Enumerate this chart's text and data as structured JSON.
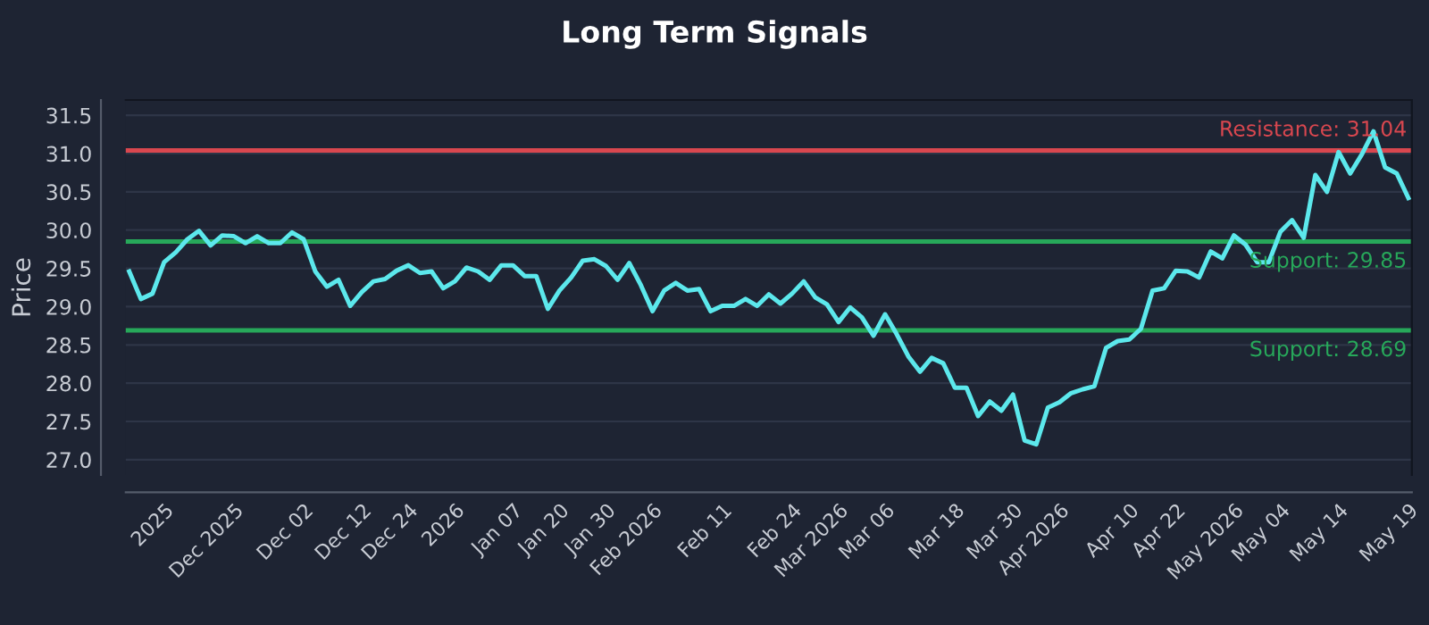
{
  "chart_data": {
    "type": "line",
    "title": "Long Term Signals",
    "ylabel": "Price",
    "categories": [
      null,
      null,
      null,
      "2025",
      null,
      null,
      null,
      null,
      null,
      "Dec 2025",
      null,
      null,
      null,
      null,
      null,
      "Dec 02",
      null,
      null,
      null,
      null,
      "Dec 12",
      null,
      null,
      null,
      "Dec 24",
      null,
      null,
      null,
      "2026",
      null,
      null,
      null,
      null,
      "Jan 07",
      null,
      null,
      null,
      "Jan 20",
      null,
      null,
      null,
      "Jan 30",
      null,
      null,
      null,
      "Feb 2026",
      null,
      null,
      null,
      null,
      null,
      "Feb 11",
      null,
      null,
      null,
      null,
      null,
      "Feb 24",
      null,
      null,
      null,
      "Mar 2026",
      null,
      null,
      null,
      "Mar 06",
      null,
      null,
      null,
      null,
      null,
      "Mar 18",
      null,
      null,
      null,
      null,
      "Mar 30",
      null,
      null,
      null,
      "Apr 2026",
      null,
      null,
      null,
      null,
      null,
      "Apr 10",
      null,
      null,
      null,
      "Apr 22",
      null,
      null,
      null,
      null,
      "May 2026",
      null,
      null,
      null,
      "May 04",
      null,
      null,
      null,
      null,
      "May 14",
      null,
      null,
      null,
      null,
      null,
      "May 19"
    ],
    "series": [
      {
        "color": "#5ce8ec",
        "values": [
          29.46,
          29.1,
          29.17,
          29.58,
          29.71,
          29.88,
          29.99,
          29.8,
          29.93,
          29.92,
          29.83,
          29.92,
          29.83,
          29.83,
          29.97,
          29.88,
          29.46,
          29.26,
          29.35,
          29.01,
          29.19,
          29.33,
          29.36,
          29.47,
          29.54,
          29.44,
          29.46,
          29.24,
          29.33,
          29.51,
          29.46,
          29.35,
          29.54,
          29.54,
          29.4,
          29.4,
          28.97,
          29.21,
          29.38,
          29.6,
          29.62,
          29.53,
          29.35,
          29.57,
          29.28,
          28.94,
          29.21,
          29.31,
          29.21,
          29.23,
          28.94,
          29.01,
          29.01,
          29.1,
          29.01,
          29.16,
          29.04,
          29.17,
          29.33,
          29.12,
          29.03,
          28.8,
          28.99,
          28.86,
          28.62,
          28.9,
          28.64,
          28.35,
          28.15,
          28.33,
          28.26,
          27.94,
          27.94,
          27.57,
          27.76,
          27.64,
          27.85,
          27.25,
          27.2,
          27.68,
          27.75,
          27.87,
          27.92,
          27.96,
          28.46,
          28.55,
          28.57,
          28.71,
          29.21,
          29.24,
          29.47,
          29.46,
          29.38,
          29.72,
          29.63,
          29.93,
          29.81,
          29.58,
          29.58,
          29.98,
          30.13,
          29.9,
          30.72,
          30.5,
          31.02,
          30.74,
          30.99,
          31.29,
          30.82,
          30.74,
          30.42
        ]
      }
    ],
    "ylim": [
      26.8,
      31.7
    ],
    "yticks": [
      {
        "value": 27,
        "label": "27.0"
      },
      {
        "value": 27.5,
        "label": "27.5"
      },
      {
        "value": 28,
        "label": "28.0"
      },
      {
        "value": 28.5,
        "label": "28.5"
      },
      {
        "value": 29,
        "label": "29.0"
      },
      {
        "value": 29.5,
        "label": "29.5"
      },
      {
        "value": 30,
        "label": "30.0"
      },
      {
        "value": 30.5,
        "label": "30.5"
      },
      {
        "value": 31,
        "label": "31.0"
      },
      {
        "value": 31.5,
        "label": "31.5"
      }
    ],
    "ref_lines": [
      {
        "axis": "y",
        "value": 31.04,
        "label": "Resistance: 31.04",
        "color": "#d9474f"
      },
      {
        "axis": "y",
        "value": 29.85,
        "label": "Support: 29.85",
        "color": "#27a85a"
      },
      {
        "axis": "y",
        "value": 28.69,
        "label": "Support: 28.69",
        "color": "#27a85a"
      }
    ],
    "grid": "y",
    "legend": false,
    "marker": "none",
    "line_style": "solid"
  }
}
